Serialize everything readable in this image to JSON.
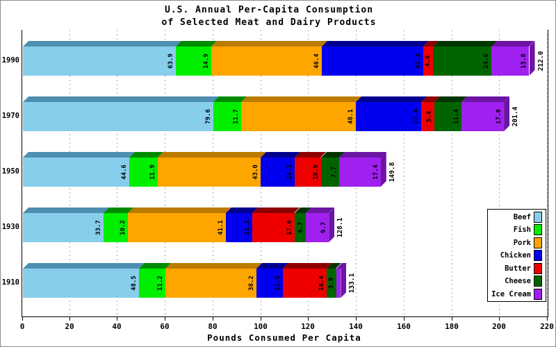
{
  "title": {
    "line1": "U.S. Annual Per-Capita Consumption",
    "line2": "of Selected Meat and Dairy Products"
  },
  "chart_data": {
    "type": "bar",
    "variant": "horizontal-stacked-3d",
    "title": "U.S. Annual Per-Capita Consumption of Selected Meat and Dairy Products",
    "xlabel": "Pounds Consumed Per Capita",
    "ylabel": "",
    "xlim": [
      0,
      220
    ],
    "xticks": [
      0,
      20,
      40,
      60,
      80,
      100,
      120,
      140,
      160,
      180,
      200,
      220
    ],
    "grid": "vertical-dashed",
    "legend_position": "middle-right",
    "categories": [
      "1990",
      "1970",
      "1950",
      "1930",
      "1910"
    ],
    "series": [
      {
        "name": "Beef",
        "color": "#87CEEB",
        "edge_color": "#4d8fb0",
        "values": [
          63.9,
          79.6,
          44.6,
          33.7,
          48.5
        ]
      },
      {
        "name": "Fish",
        "color": "#00EE00",
        "edge_color": "#008a00",
        "values": [
          14.9,
          11.7,
          11.9,
          10.2,
          11.2
        ]
      },
      {
        "name": "Pork",
        "color": "#FFA500",
        "edge_color": "#bb7a00",
        "values": [
          46.4,
          48.1,
          43.0,
          41.1,
          38.2
        ]
      },
      {
        "name": "Chicken",
        "color": "#0000EE",
        "edge_color": "#000090",
        "values": [
          42.4,
          27.4,
          14.3,
          11.1,
          11.0
        ]
      },
      {
        "name": "Butter",
        "color": "#EE0000",
        "edge_color": "#8e0000",
        "values": [
          4.0,
          5.4,
          10.9,
          17.6,
          18.4
        ]
      },
      {
        "name": "Cheese",
        "color": "#006400",
        "edge_color": "#003500",
        "values": [
          24.6,
          11.4,
          7.7,
          4.7,
          3.9
        ]
      },
      {
        "name": "Ice Cream",
        "color": "#A020F0",
        "edge_color": "#6c14a4",
        "values": [
          15.8,
          17.8,
          17.4,
          9.7,
          1.9
        ]
      }
    ],
    "totals": [
      212.0,
      201.4,
      149.8,
      128.1,
      133.1
    ],
    "legend": [
      "Beef",
      "Fish",
      "Pork",
      "Chicken",
      "Butter",
      "Cheese",
      "Ice Cream"
    ]
  }
}
